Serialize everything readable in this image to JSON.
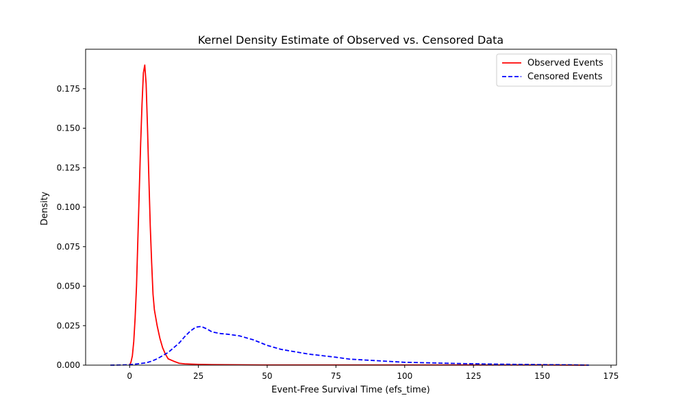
{
  "chart_data": {
    "type": "line",
    "title": "Kernel Density Estimate of Observed vs. Censored Data",
    "xlabel": "Event-Free Survival Time (efs_time)",
    "ylabel": "Density",
    "xlim": [
      -16,
      177
    ],
    "ylim": [
      0,
      0.2
    ],
    "x_ticks": [
      0,
      25,
      50,
      75,
      100,
      125,
      150,
      175
    ],
    "x_tick_labels": [
      "0",
      "25",
      "50",
      "75",
      "100",
      "125",
      "150",
      "175"
    ],
    "y_ticks": [
      0,
      0.025,
      0.05,
      0.075,
      0.1,
      0.125,
      0.15,
      0.175
    ],
    "y_tick_labels": [
      "0.000",
      "0.025",
      "0.050",
      "0.075",
      "0.100",
      "0.125",
      "0.150",
      "0.175"
    ],
    "grid": false,
    "legend_position": "top-right",
    "series": [
      {
        "name": "Observed Events",
        "color": "#ff0000",
        "style": "solid",
        "x": [
          0,
          0.5,
          1,
          1.5,
          2,
          2.5,
          3,
          3.5,
          4,
          4.5,
          5,
          5.5,
          6,
          6.5,
          7,
          7.5,
          8,
          8.5,
          9,
          10,
          11,
          12,
          13,
          14,
          16,
          18,
          20,
          25,
          30,
          40,
          50,
          75,
          100,
          125,
          150,
          166
        ],
        "y": [
          0,
          0.002,
          0.006,
          0.015,
          0.03,
          0.05,
          0.08,
          0.11,
          0.14,
          0.165,
          0.185,
          0.19,
          0.178,
          0.15,
          0.118,
          0.088,
          0.065,
          0.045,
          0.035,
          0.025,
          0.017,
          0.011,
          0.007,
          0.004,
          0.0025,
          0.0012,
          0.0008,
          0.0005,
          0.0003,
          0.0002,
          0.0001,
          0.0001,
          0.0001,
          0.0001,
          0.0001,
          0
        ]
      },
      {
        "name": "Censored Events",
        "color": "#0000ff",
        "style": "dashed",
        "x": [
          -7,
          -3,
          0,
          3,
          6,
          8,
          10,
          12,
          14,
          16,
          18,
          20,
          22,
          24,
          26,
          28,
          30,
          33,
          36,
          40,
          45,
          50,
          55,
          60,
          65,
          70,
          75,
          80,
          90,
          100,
          110,
          120,
          130,
          140,
          150,
          160,
          167
        ],
        "y": [
          0,
          0.0001,
          0.0003,
          0.0008,
          0.0015,
          0.0025,
          0.004,
          0.006,
          0.008,
          0.011,
          0.014,
          0.018,
          0.0215,
          0.024,
          0.0245,
          0.023,
          0.021,
          0.02,
          0.0195,
          0.0185,
          0.016,
          0.0125,
          0.01,
          0.0085,
          0.007,
          0.006,
          0.005,
          0.0038,
          0.0028,
          0.0018,
          0.0014,
          0.001,
          0.0007,
          0.0005,
          0.0003,
          0.0002,
          0
        ]
      }
    ]
  }
}
